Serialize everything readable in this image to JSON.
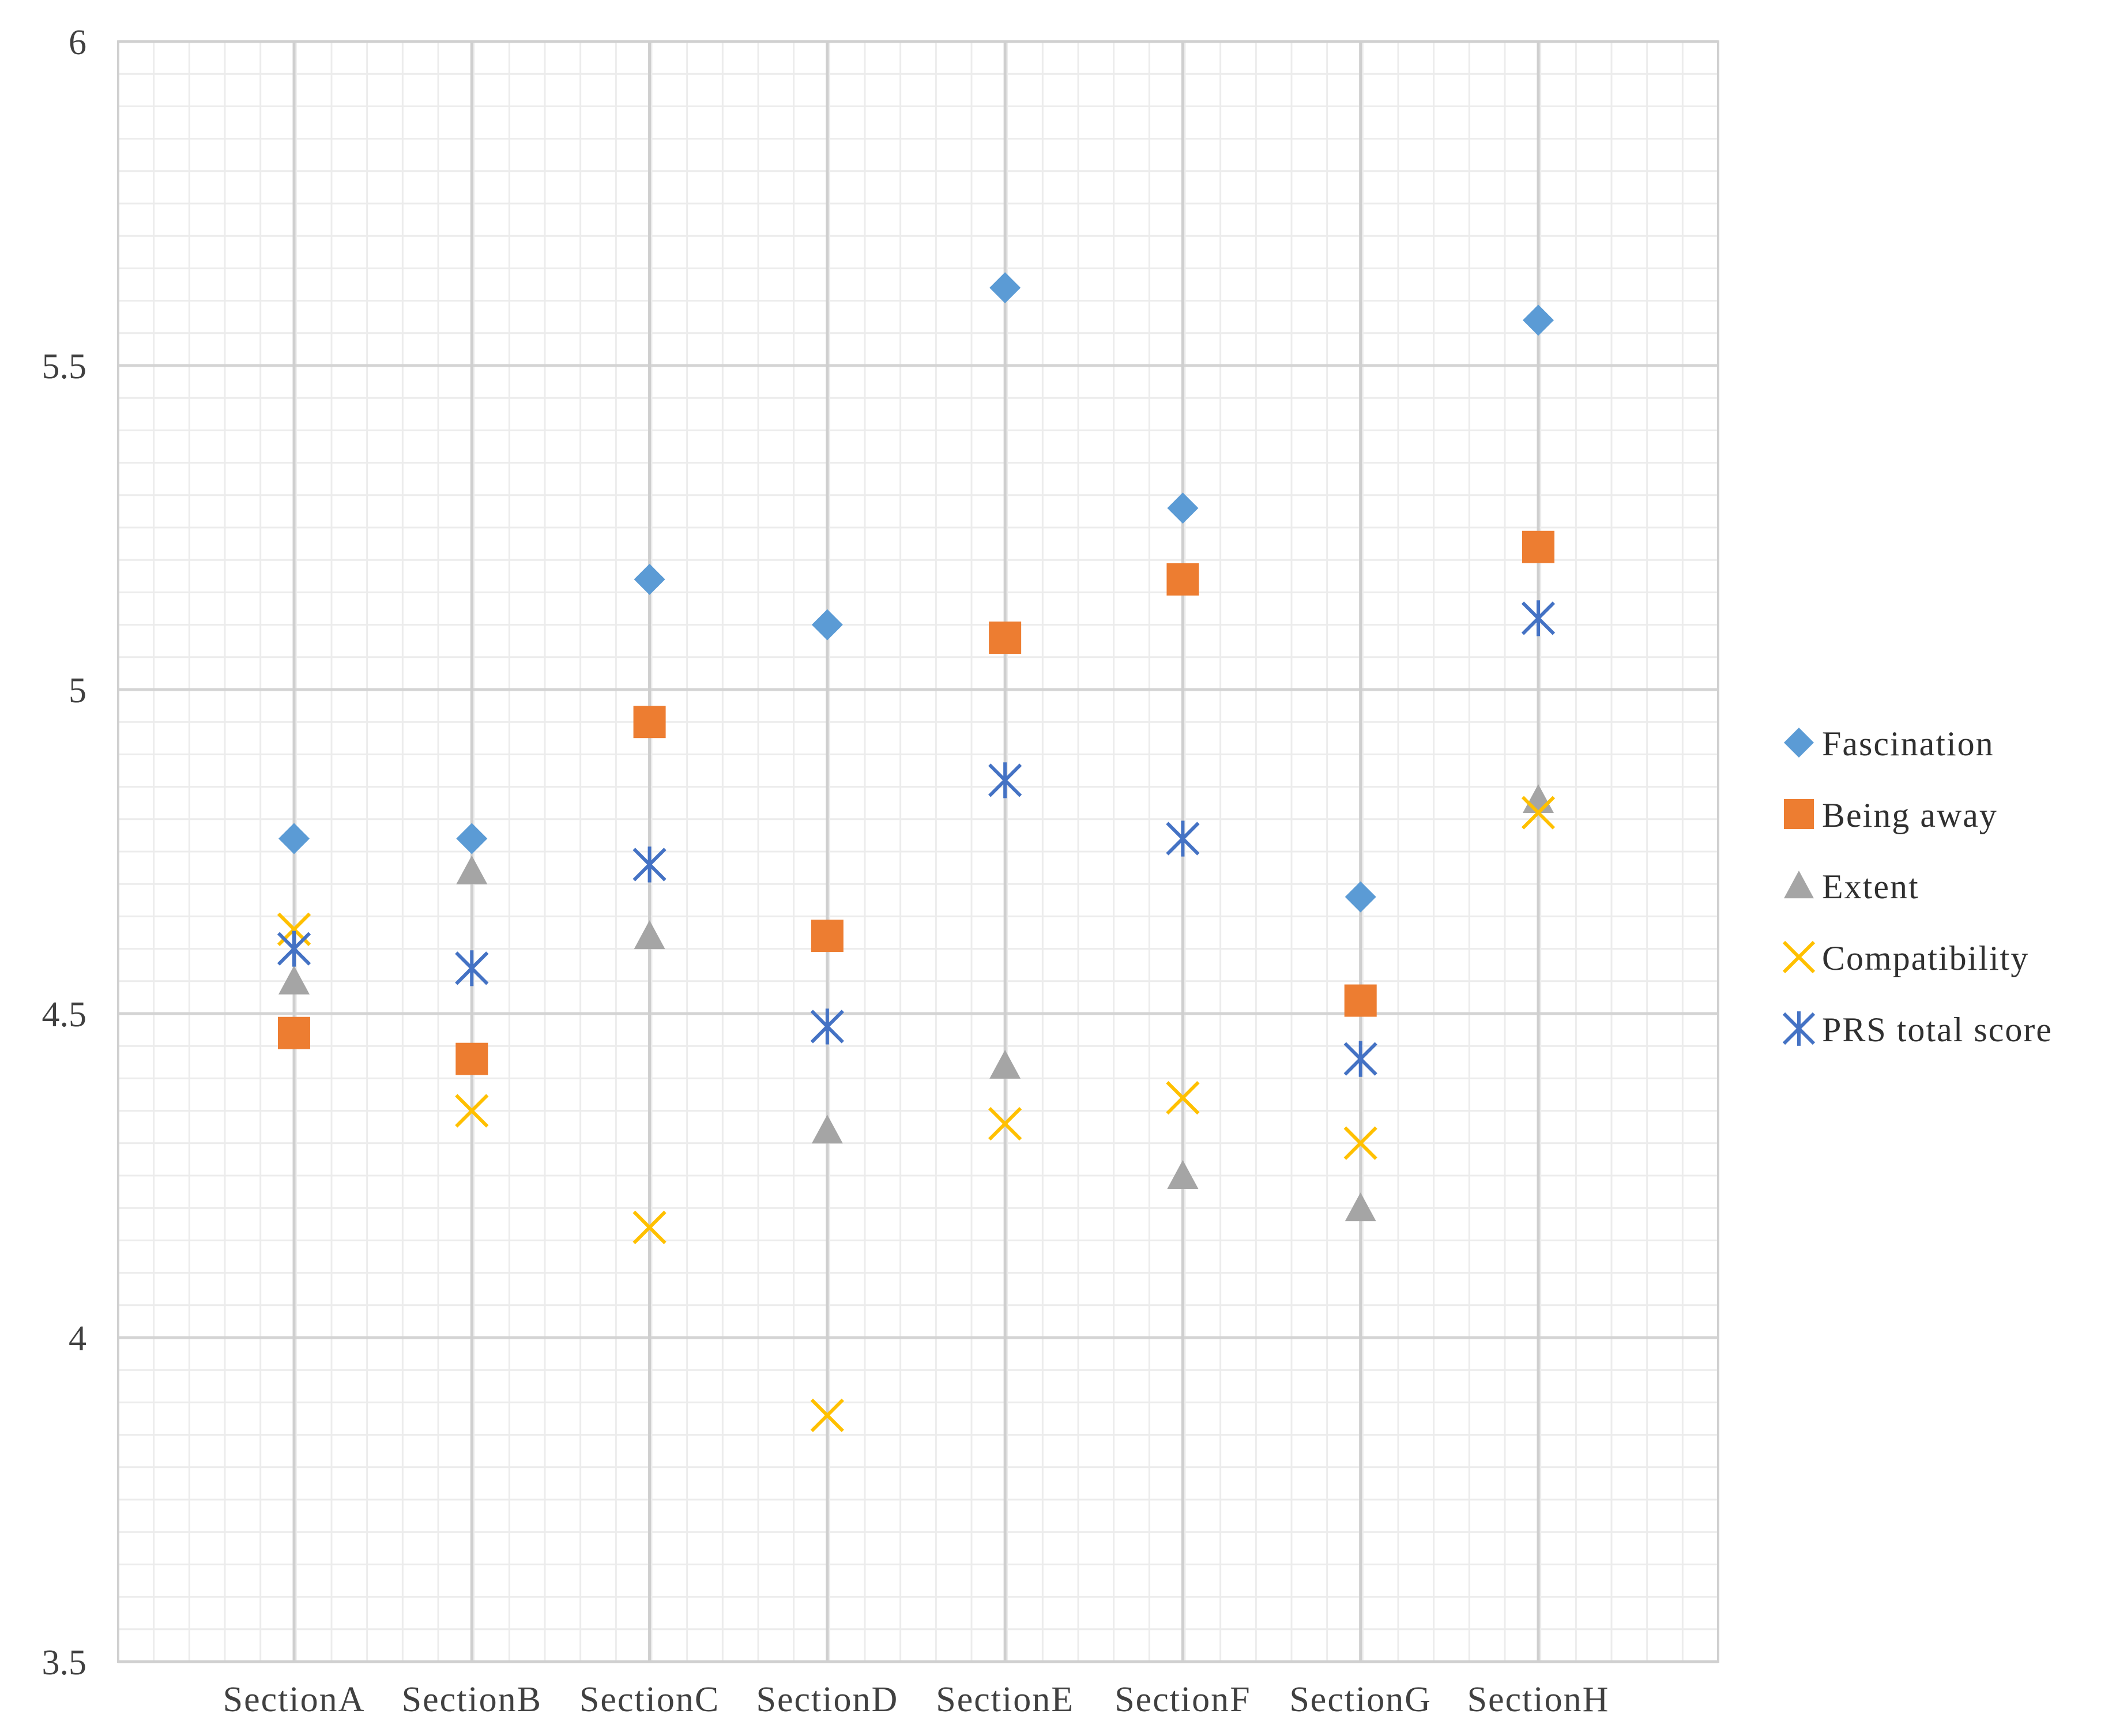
{
  "chart_data": {
    "type": "scatter",
    "categories": [
      "SectionA",
      "SectionB",
      "SectionC",
      "SectionD",
      "SectionE",
      "SectionF",
      "SectionG",
      "SectionH"
    ],
    "ylim": [
      3.5,
      6
    ],
    "yticks": [
      "3.5",
      "4",
      "4.5",
      "5",
      "5.5",
      "6"
    ],
    "ytick_values": [
      3.5,
      4,
      4.5,
      5,
      5.5,
      6
    ],
    "grid": "major and minor",
    "legend_position": "right",
    "series": [
      {
        "name": "Fascination",
        "marker": "diamond",
        "color": "#5B9BD5",
        "values": [
          4.77,
          4.77,
          5.17,
          5.1,
          5.62,
          5.28,
          4.68,
          5.57
        ]
      },
      {
        "name": "Being away",
        "marker": "square",
        "color": "#ED7D31",
        "values": [
          4.47,
          4.43,
          4.95,
          4.62,
          5.08,
          5.17,
          4.52,
          5.22
        ]
      },
      {
        "name": "Extent",
        "marker": "triangle",
        "color": "#A5A5A5",
        "values": [
          4.55,
          4.72,
          4.62,
          4.32,
          4.42,
          4.25,
          4.2,
          4.83
        ]
      },
      {
        "name": "Compatibility",
        "marker": "x",
        "color": "#FFC000",
        "values": [
          4.63,
          4.35,
          4.17,
          3.88,
          4.33,
          4.37,
          4.3,
          4.81
        ]
      },
      {
        "name": "PRS total score",
        "marker": "star",
        "color": "#4472C4",
        "values": [
          4.6,
          4.57,
          4.73,
          4.48,
          4.86,
          4.77,
          4.43,
          5.11
        ]
      }
    ]
  }
}
